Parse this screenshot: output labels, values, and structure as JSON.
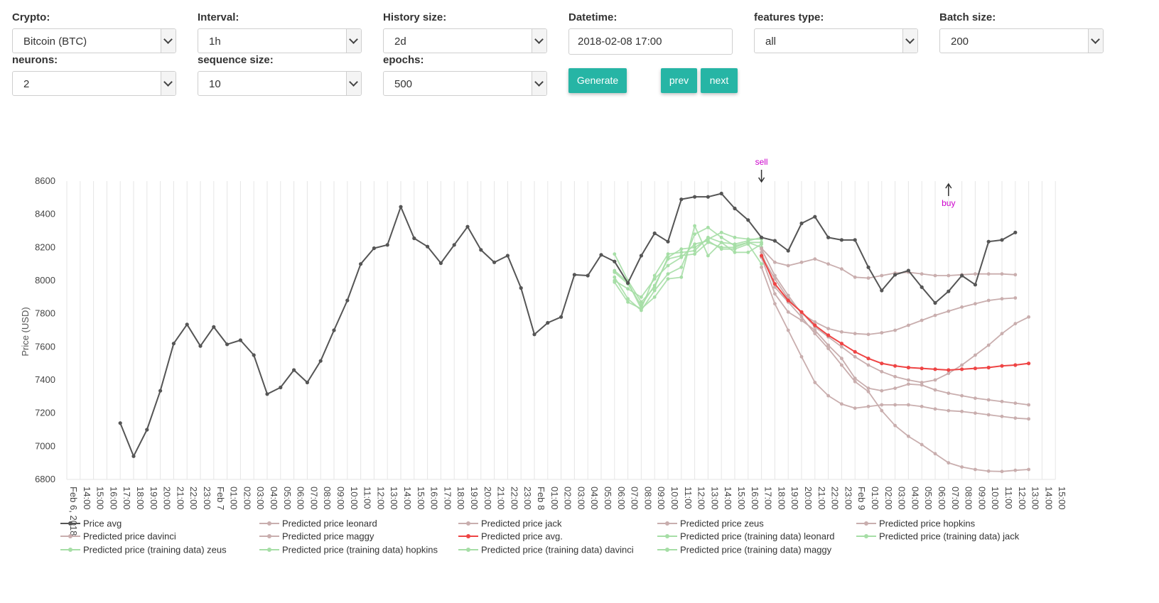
{
  "controls": {
    "crypto": {
      "label": "Crypto:",
      "value": "Bitcoin (BTC)"
    },
    "interval": {
      "label": "Interval:",
      "value": "1h"
    },
    "history_size": {
      "label": "History size:",
      "value": "2d"
    },
    "datetime": {
      "label": "Datetime:",
      "value": "2018-02-08 17:00"
    },
    "features_type": {
      "label": "features type:",
      "value": "all"
    },
    "batch_size": {
      "label": "Batch size:",
      "value": "200"
    },
    "neurons": {
      "label": "neurons:",
      "value": "2"
    },
    "sequence_size": {
      "label": "sequence size:",
      "value": "10"
    },
    "epochs": {
      "label": "epochs:",
      "value": "500"
    },
    "generate_label": "Generate",
    "prev_label": "prev",
    "next_label": "next"
  },
  "colors": {
    "accent": "#26b5a5",
    "price": "#555555",
    "pred": "#c9aeae",
    "pred_avg": "#ee4444",
    "train": "#a6dea6",
    "annotation": "#cc00cc"
  },
  "chart_data": {
    "type": "line",
    "ylabel": "Price (USD)",
    "ylim": [
      6800,
      8600
    ],
    "yticks": [
      6800,
      7000,
      7200,
      7400,
      7600,
      7800,
      8000,
      8200,
      8400,
      8600
    ],
    "x_start": "Feb 6, 2018 13:00",
    "x_hours": 74,
    "tick_labels": [
      "Feb 6, 2018",
      "14:00",
      "15:00",
      "16:00",
      "17:00",
      "18:00",
      "19:00",
      "20:00",
      "21:00",
      "22:00",
      "23:00",
      "Feb 7",
      "01:00",
      "02:00",
      "03:00",
      "04:00",
      "05:00",
      "06:00",
      "07:00",
      "08:00",
      "09:00",
      "10:00",
      "11:00",
      "12:00",
      "13:00",
      "14:00",
      "15:00",
      "16:00",
      "17:00",
      "18:00",
      "19:00",
      "20:00",
      "21:00",
      "22:00",
      "23:00",
      "Feb 8",
      "01:00",
      "02:00",
      "03:00",
      "04:00",
      "05:00",
      "06:00",
      "07:00",
      "08:00",
      "09:00",
      "10:00",
      "11:00",
      "12:00",
      "13:00",
      "14:00",
      "15:00",
      "16:00",
      "17:00",
      "18:00",
      "19:00",
      "20:00",
      "21:00",
      "22:00",
      "23:00",
      "Feb 9",
      "01:00",
      "02:00",
      "03:00",
      "04:00",
      "05:00",
      "06:00",
      "07:00",
      "08:00",
      "09:00",
      "10:00",
      "11:00",
      "12:00",
      "13:00",
      "14:00",
      "15:00"
    ],
    "annotations": [
      {
        "text": "sell",
        "x": "Feb 8, 2018 17:00",
        "direction": "down"
      },
      {
        "text": "buy",
        "x": "Feb 9, 2018 07:00",
        "direction": "up"
      }
    ],
    "series": [
      {
        "name": "Price avg",
        "kind": "price",
        "x_start": "Feb 6, 2018 17:00",
        "values": [
          7140,
          6940,
          7100,
          7335,
          7620,
          7735,
          7605,
          7720,
          7615,
          7640,
          7550,
          7315,
          7355,
          7460,
          7385,
          7515,
          7700,
          7880,
          8100,
          8195,
          8215,
          8445,
          8255,
          8205,
          8105,
          8215,
          8325,
          8185,
          8110,
          8150,
          7955,
          7675,
          7745,
          7780,
          8035,
          8030,
          8155,
          8115,
          7985,
          8150,
          8285,
          8235,
          8490,
          8505,
          8505,
          8525,
          8435,
          8365,
          8260,
          8240,
          8180,
          8345,
          8385,
          8260,
          8245,
          8245,
          8080,
          7940,
          8035,
          8060,
          7960,
          7865,
          7935,
          8030,
          7975,
          8235,
          8245,
          8290
        ]
      },
      {
        "name": "Predicted price leonard",
        "kind": "pred",
        "x_start": "Feb 8, 2018 17:00",
        "values": [
          8195,
          8110,
          8090,
          8110,
          8130,
          8100,
          8070,
          8020,
          8015,
          8030,
          8045,
          8050,
          8040,
          8030,
          8030,
          8035,
          8040,
          8040,
          8040,
          8035
        ]
      },
      {
        "name": "Predicted price davinci",
        "kind": "pred",
        "x_start": "Feb 8, 2018 17:00",
        "values": [
          8150,
          8010,
          7890,
          7810,
          7720,
          7660,
          7600,
          7540,
          7490,
          7450,
          7420,
          7400,
          7385,
          7400,
          7440,
          7490,
          7550,
          7610,
          7680,
          7740,
          7780
        ]
      },
      {
        "name": "Predicted price jack",
        "kind": "pred",
        "x_start": "Feb 8, 2018 17:00",
        "values": [
          8190,
          8030,
          7910,
          7800,
          7750,
          7710,
          7690,
          7680,
          7675,
          7685,
          7700,
          7730,
          7760,
          7790,
          7815,
          7840,
          7860,
          7880,
          7890,
          7895
        ]
      },
      {
        "name": "Predicted price maggy",
        "kind": "pred",
        "x_start": "Feb 8, 2018 17:00",
        "values": [
          8140,
          7920,
          7810,
          7760,
          7700,
          7610,
          7530,
          7410,
          7350,
          7335,
          7350,
          7375,
          7370,
          7340,
          7320,
          7305,
          7290,
          7280,
          7270,
          7260,
          7250
        ]
      },
      {
        "name": "Predicted price avg.",
        "kind": "avg",
        "x_start": "Feb 8, 2018 17:00",
        "values": [
          8150,
          7980,
          7880,
          7810,
          7730,
          7670,
          7620,
          7570,
          7530,
          7500,
          7485,
          7475,
          7470,
          7465,
          7460,
          7465,
          7470,
          7475,
          7485,
          7490,
          7500
        ]
      },
      {
        "name": "Predicted price zeus",
        "kind": "pred",
        "x_start": "Feb 8, 2018 17:00",
        "values": [
          8080,
          7860,
          7700,
          7540,
          7385,
          7305,
          7255,
          7230,
          7240,
          7250,
          7250,
          7250,
          7240,
          7225,
          7215,
          7210,
          7200,
          7190,
          7180,
          7170,
          7165
        ]
      },
      {
        "name": "Predicted price hopkins",
        "kind": "pred",
        "x_start": "Feb 8, 2018 17:00",
        "values": [
          8170,
          7960,
          7870,
          7780,
          7680,
          7590,
          7490,
          7390,
          7330,
          7215,
          7125,
          7060,
          7010,
          6955,
          6900,
          6875,
          6860,
          6850,
          6848,
          6855,
          6860
        ]
      },
      {
        "name": "Predicted price (training data) leonard",
        "kind": "train",
        "x_start": "Feb 8, 2018 06:00",
        "values": [
          8160,
          8000,
          7870,
          7960,
          8140,
          8190,
          8200,
          8250,
          8290,
          8260,
          8250,
          8250
        ]
      },
      {
        "name": "Predicted price (training data) jack",
        "kind": "train",
        "x_start": "Feb 8, 2018 06:00",
        "values": [
          8060,
          7990,
          7830,
          8030,
          8160,
          8170,
          8180,
          8260,
          8230,
          8220,
          8240,
          8260
        ]
      },
      {
        "name": "Predicted price (training data) zeus",
        "kind": "train",
        "x_start": "Feb 8, 2018 06:00",
        "values": [
          8050,
          7980,
          7850,
          7970,
          8130,
          8150,
          8160,
          8230,
          8200,
          8200,
          8230,
          8230
        ]
      },
      {
        "name": "Predicted price (training data) hopkins",
        "kind": "train",
        "x_start": "Feb 8, 2018 06:00",
        "values": [
          8000,
          7950,
          7900,
          8010,
          8090,
          8140,
          8220,
          8240,
          8190,
          8190,
          8220,
          8100
        ]
      },
      {
        "name": "Predicted price (training data) davinci",
        "kind": "train",
        "x_start": "Feb 8, 2018 06:00",
        "values": [
          8020,
          7890,
          7820,
          7940,
          8040,
          8080,
          8280,
          8320,
          8260,
          8210,
          8230,
          8200
        ]
      },
      {
        "name": "Predicted price (training data) maggy",
        "kind": "train",
        "x_start": "Feb 8, 2018 06:00",
        "values": [
          7990,
          7870,
          7830,
          7900,
          8010,
          8020,
          8330,
          8150,
          8230,
          8170,
          8170,
          8220
        ]
      }
    ],
    "legend": [
      {
        "label": "Price avg",
        "kind": "price"
      },
      {
        "label": "Predicted price leonard",
        "kind": "pred"
      },
      {
        "label": "Predicted price jack",
        "kind": "pred"
      },
      {
        "label": "Predicted price zeus",
        "kind": "pred"
      },
      {
        "label": "Predicted price hopkins",
        "kind": "pred"
      },
      {
        "label": "Predicted price davinci",
        "kind": "pred"
      },
      {
        "label": "Predicted price maggy",
        "kind": "pred"
      },
      {
        "label": "Predicted price avg.",
        "kind": "avg"
      },
      {
        "label": "Predicted price (training data) leonard",
        "kind": "train"
      },
      {
        "label": "Predicted price (training data) jack",
        "kind": "train"
      },
      {
        "label": "Predicted price (training data) zeus",
        "kind": "train"
      },
      {
        "label": "Predicted price (training data) hopkins",
        "kind": "train"
      },
      {
        "label": "Predicted price (training data) davinci",
        "kind": "train"
      },
      {
        "label": "Predicted price (training data) maggy",
        "kind": "train"
      }
    ]
  }
}
